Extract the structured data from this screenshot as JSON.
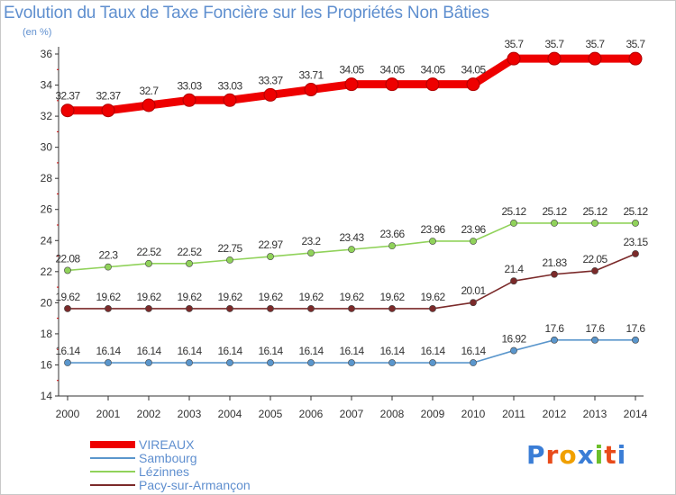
{
  "title": "Evolution du Taux de Taxe Foncière sur les Propriétés Non Bâties",
  "unit_label": "(en %)",
  "logo": {
    "text": "Proxiti",
    "colors": [
      "#3a7dd6",
      "#e84b1a",
      "#f0a000",
      "#3a7dd6",
      "#6cbf2a",
      "#e84b1a",
      "#3a7dd6"
    ]
  },
  "chart_data": {
    "type": "line",
    "title": "Evolution du Taux de Taxe Foncière sur les Propriétés Non Bâties",
    "ylabel": "(en %)",
    "xlabel": "",
    "x": [
      "2000",
      "2001",
      "2002",
      "2003",
      "2004",
      "2005",
      "2006",
      "2007",
      "2008",
      "2009",
      "2010",
      "2011",
      "2012",
      "2013",
      "2014"
    ],
    "ylim": [
      14,
      36
    ],
    "yticks": [
      14,
      16,
      18,
      20,
      22,
      24,
      26,
      28,
      30,
      32,
      34,
      36
    ],
    "grid": false,
    "legend_position": "bottom-left",
    "series": [
      {
        "name": "VIREAUX",
        "color": "#ee0000",
        "thick": true,
        "values": [
          32.37,
          32.37,
          32.7,
          33.03,
          33.03,
          33.37,
          33.71,
          34.05,
          34.05,
          34.05,
          34.05,
          35.7,
          35.7,
          35.7,
          35.7
        ],
        "labels": [
          "32.37",
          "32.37",
          "32.7",
          "33.03",
          "33.03",
          "33.37",
          "33.71",
          "34.05",
          "34.05",
          "34.05",
          "34.05",
          "35.7",
          "35.7",
          "35.7",
          "35.7"
        ]
      },
      {
        "name": "Sambourg",
        "color": "#5a96cc",
        "thick": false,
        "values": [
          16.14,
          16.14,
          16.14,
          16.14,
          16.14,
          16.14,
          16.14,
          16.14,
          16.14,
          16.14,
          16.14,
          16.92,
          17.6,
          17.6,
          17.6
        ],
        "labels": [
          "16.14",
          "16.14",
          "16.14",
          "16.14",
          "16.14",
          "16.14",
          "16.14",
          "16.14",
          "16.14",
          "16.14",
          "16.14",
          "16.92",
          "17.6",
          "17.6",
          "17.6"
        ]
      },
      {
        "name": "Lézinnes",
        "color": "#90d25a",
        "thick": false,
        "values": [
          22.08,
          22.3,
          22.52,
          22.52,
          22.75,
          22.97,
          23.2,
          23.43,
          23.66,
          23.96,
          23.96,
          25.12,
          25.12,
          25.12,
          25.12
        ],
        "labels": [
          "22.08",
          "22.3",
          "22.52",
          "22.52",
          "22.75",
          "22.97",
          "23.2",
          "23.43",
          "23.66",
          "23.96",
          "23.96",
          "25.12",
          "25.12",
          "25.12",
          "25.12"
        ]
      },
      {
        "name": "Pacy-sur-Armançon",
        "color": "#7b2a2a",
        "thick": false,
        "values": [
          19.62,
          19.62,
          19.62,
          19.62,
          19.62,
          19.62,
          19.62,
          19.62,
          19.62,
          19.62,
          20.01,
          21.4,
          21.83,
          22.05,
          23.15
        ],
        "labels": [
          "19.62",
          "19.62",
          "19.62",
          "19.62",
          "19.62",
          "19.62",
          "19.62",
          "19.62",
          "19.62",
          "19.62",
          "20.01",
          "21.4",
          "21.83",
          "22.05",
          "23.15"
        ]
      }
    ]
  }
}
